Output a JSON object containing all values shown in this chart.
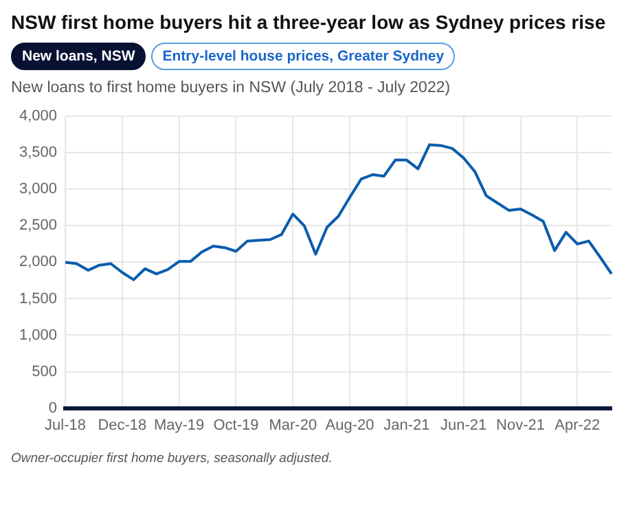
{
  "chart_data": {
    "type": "line",
    "title": "NSW first home buyers hit a three-year low as Sydney prices rise",
    "subtitle": "New loans to first home buyers in NSW (July 2018 - July 2022)",
    "annotations": [
      "New loans, NSW",
      "Entry-level house prices, Greater Sydney",
      "Owner-occupier first home buyers, seasonally adjusted."
    ],
    "categories": [
      "Jul-18",
      null,
      null,
      null,
      null,
      "Dec-18",
      null,
      null,
      null,
      null,
      "May-19",
      null,
      null,
      null,
      null,
      "Oct-19",
      null,
      null,
      null,
      null,
      "Mar-20",
      null,
      null,
      null,
      null,
      "Aug-20",
      null,
      null,
      null,
      null,
      "Jan-21",
      null,
      null,
      null,
      null,
      "Jun-21",
      null,
      null,
      null,
      null,
      "Nov-21",
      null,
      null,
      null,
      null,
      "Apr-22",
      null,
      null,
      null
    ],
    "series": [
      {
        "color": "#0b5cad",
        "values": [
          2000,
          1980,
          1890,
          1960,
          1980,
          1860,
          1760,
          1910,
          1840,
          1900,
          2010,
          2010,
          2140,
          2220,
          2200,
          2150,
          2290,
          2300,
          2310,
          2380,
          2660,
          2500,
          2110,
          2480,
          2630,
          2890,
          3140,
          3200,
          3180,
          3400,
          3400,
          3280,
          3610,
          3600,
          3560,
          3430,
          3240,
          2910,
          2810,
          2710,
          2730,
          2650,
          2560,
          2160,
          2410,
          2250,
          2290,
          2070,
          1840
        ]
      }
    ],
    "ylim": [
      0,
      4000
    ],
    "yticks": [
      0,
      500,
      {
        "value": 1000,
        "label": "1,000"
      },
      {
        "value": 1500,
        "label": "1,500"
      },
      {
        "value": 2000,
        "label": "2,000"
      },
      {
        "value": 2500,
        "label": "2,500"
      },
      {
        "value": 3000,
        "label": "3,000"
      },
      {
        "value": 3500,
        "label": "3,500"
      },
      {
        "value": 4000,
        "label": "4,000"
      }
    ],
    "grid": true,
    "legend": false,
    "marker": "none",
    "line_style": "solid"
  }
}
